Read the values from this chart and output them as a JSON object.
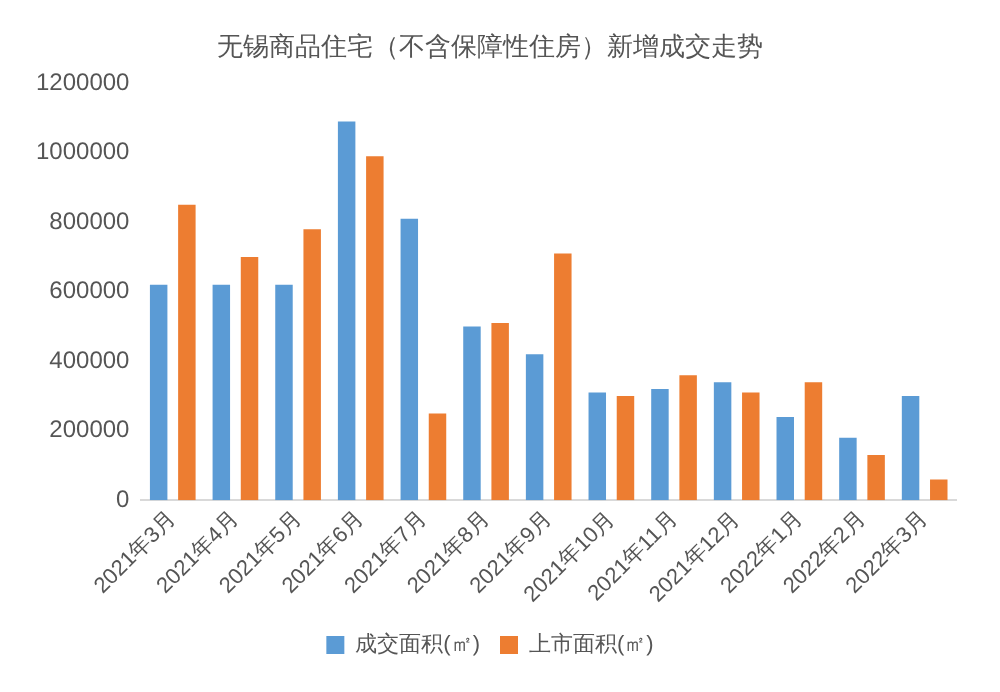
{
  "chart_data": {
    "type": "bar",
    "title": "无锡商品住宅（不含保障性住房）新增成交走势",
    "categories": [
      "2021年3月",
      "2021年4月",
      "2021年5月",
      "2021年6月",
      "2021年7月",
      "2021年8月",
      "2021年9月",
      "2021年10月",
      "2021年11月",
      "2021年12月",
      "2022年1月",
      "2022年2月",
      "2022年3月"
    ],
    "series": [
      {
        "name": "成交面积(㎡)",
        "color": "#5b9bd5",
        "values": [
          620000,
          620000,
          620000,
          1090000,
          810000,
          500000,
          420000,
          310000,
          320000,
          340000,
          240000,
          180000,
          300000
        ]
      },
      {
        "name": "上市面积(㎡)",
        "color": "#ed7d31",
        "values": [
          850000,
          700000,
          780000,
          990000,
          250000,
          510000,
          710000,
          300000,
          360000,
          310000,
          340000,
          130000,
          60000
        ]
      }
    ],
    "ylim": [
      0,
      1200000
    ],
    "yticks": [
      0,
      200000,
      400000,
      600000,
      800000,
      1000000,
      1200000
    ],
    "grid": false,
    "legend": "bottom"
  }
}
